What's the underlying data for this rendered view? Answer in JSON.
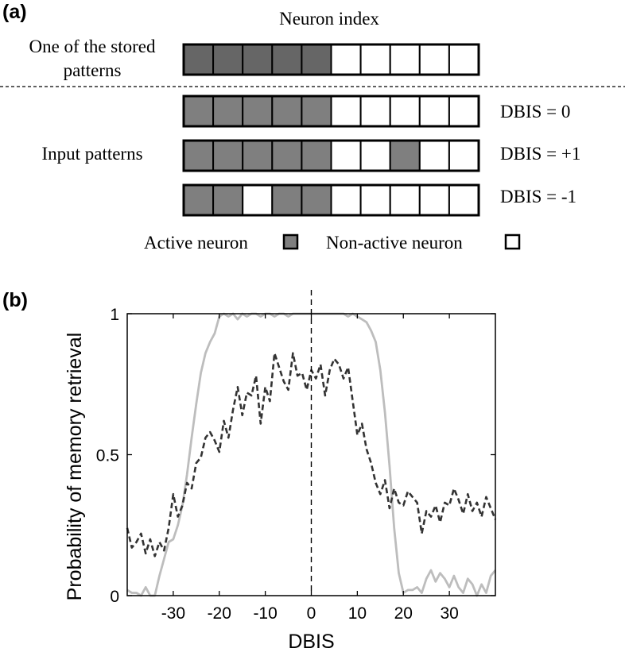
{
  "panel_a": {
    "label": "(a)",
    "title": "Neuron index",
    "stored_label_line1": "One of the stored",
    "stored_label_line2": "patterns",
    "input_label": "Input patterns",
    "stored_pattern": [
      1,
      1,
      1,
      1,
      1,
      0,
      0,
      0,
      0,
      0
    ],
    "input_patterns": [
      {
        "label": "DBIS = 0",
        "cells": [
          1,
          1,
          1,
          1,
          1,
          0,
          0,
          0,
          0,
          0
        ]
      },
      {
        "label": "DBIS = +1",
        "cells": [
          1,
          1,
          1,
          1,
          1,
          0,
          0,
          1,
          0,
          0
        ]
      },
      {
        "label": "DBIS = -1",
        "cells": [
          1,
          1,
          0,
          1,
          1,
          0,
          0,
          0,
          0,
          0
        ]
      }
    ],
    "legend_active": "Active neuron",
    "legend_inactive": "Non-active neuron",
    "colors": {
      "active": "#7f7f7f",
      "active_stored": "#666666",
      "inactive": "#ffffff"
    }
  },
  "panel_b": {
    "label": "(b)"
  },
  "chart_data": {
    "type": "line",
    "xlabel": "DBIS",
    "ylabel": "Probability of memory retrieval",
    "xlim": [
      -40,
      40
    ],
    "ylim": [
      0,
      1
    ],
    "xticks": [
      -30,
      -20,
      -10,
      0,
      10,
      20,
      30
    ],
    "xtick_labels": [
      "-30",
      "-20",
      "-10",
      "0",
      "10",
      "20",
      "30"
    ],
    "yticks": [
      0,
      0.5,
      1
    ],
    "ytick_labels": [
      "0",
      "0.5",
      "1"
    ],
    "reference_line_x": 0,
    "series": [
      {
        "style": "solid",
        "color": "#bdbdbd",
        "x": [
          -40,
          -39,
          -38,
          -37,
          -36,
          -35,
          -34,
          -33,
          -32,
          -31,
          -30,
          -29,
          -28,
          -27,
          -26,
          -25,
          -24,
          -23,
          -22,
          -21,
          -20,
          -19,
          -18,
          -17,
          -16,
          -15,
          -14,
          -13,
          -12,
          -11,
          -10,
          -9,
          -8,
          -7,
          -6,
          -5,
          -4,
          -3,
          -2,
          -1,
          0,
          1,
          2,
          3,
          4,
          5,
          6,
          7,
          8,
          9,
          10,
          11,
          12,
          13,
          14,
          15,
          16,
          17,
          18,
          19,
          20,
          21,
          22,
          23,
          24,
          25,
          26,
          27,
          28,
          29,
          30,
          31,
          32,
          33,
          34,
          35,
          36,
          37,
          38,
          39,
          40
        ],
        "y": [
          0.02,
          0.01,
          0.01,
          0.0,
          0.03,
          0.0,
          0.0,
          0.07,
          0.13,
          0.19,
          0.2,
          0.25,
          0.32,
          0.43,
          0.56,
          0.68,
          0.79,
          0.86,
          0.9,
          0.93,
          0.99,
          1.0,
          0.99,
          1.0,
          0.98,
          1.0,
          0.99,
          1.0,
          1.0,
          0.99,
          1.0,
          1.0,
          0.99,
          1.0,
          1.0,
          0.99,
          1.0,
          1.0,
          1.0,
          1.0,
          1.0,
          1.0,
          1.0,
          1.0,
          1.0,
          1.0,
          1.0,
          1.0,
          0.99,
          1.0,
          0.99,
          0.98,
          0.97,
          0.94,
          0.9,
          0.8,
          0.65,
          0.46,
          0.24,
          0.08,
          0.01,
          0.02,
          0.02,
          0.03,
          0.01,
          0.06,
          0.09,
          0.05,
          0.08,
          0.06,
          0.03,
          0.07,
          0.03,
          0.01,
          0.06,
          0.04,
          0.0,
          0.04,
          0.01,
          0.07,
          0.09
        ]
      },
      {
        "style": "dashed",
        "color": "#333333",
        "x": [
          -40,
          -39,
          -38,
          -37,
          -36,
          -35,
          -34,
          -33,
          -32,
          -31,
          -30,
          -29,
          -28,
          -27,
          -26,
          -25,
          -24,
          -23,
          -22,
          -21,
          -20,
          -19,
          -18,
          -17,
          -16,
          -15,
          -14,
          -13,
          -12,
          -11,
          -10,
          -9,
          -8,
          -7,
          -6,
          -5,
          -4,
          -3,
          -2,
          -1,
          0,
          1,
          2,
          3,
          4,
          5,
          6,
          7,
          8,
          9,
          10,
          11,
          12,
          13,
          14,
          15,
          16,
          17,
          18,
          19,
          20,
          21,
          22,
          23,
          24,
          25,
          26,
          27,
          28,
          29,
          30,
          31,
          32,
          33,
          34,
          35,
          36,
          37,
          38,
          39,
          40
        ],
        "y": [
          0.24,
          0.17,
          0.19,
          0.22,
          0.15,
          0.2,
          0.14,
          0.19,
          0.16,
          0.24,
          0.36,
          0.28,
          0.32,
          0.4,
          0.38,
          0.47,
          0.49,
          0.56,
          0.58,
          0.55,
          0.51,
          0.62,
          0.56,
          0.66,
          0.74,
          0.64,
          0.72,
          0.71,
          0.78,
          0.61,
          0.74,
          0.69,
          0.86,
          0.81,
          0.76,
          0.73,
          0.86,
          0.78,
          0.79,
          0.73,
          0.8,
          0.77,
          0.82,
          0.71,
          0.8,
          0.84,
          0.82,
          0.77,
          0.81,
          0.69,
          0.57,
          0.61,
          0.52,
          0.47,
          0.4,
          0.36,
          0.41,
          0.31,
          0.38,
          0.33,
          0.32,
          0.37,
          0.35,
          0.33,
          0.22,
          0.3,
          0.28,
          0.32,
          0.26,
          0.33,
          0.32,
          0.38,
          0.34,
          0.29,
          0.36,
          0.3,
          0.33,
          0.28,
          0.35,
          0.31,
          0.27
        ]
      }
    ]
  }
}
